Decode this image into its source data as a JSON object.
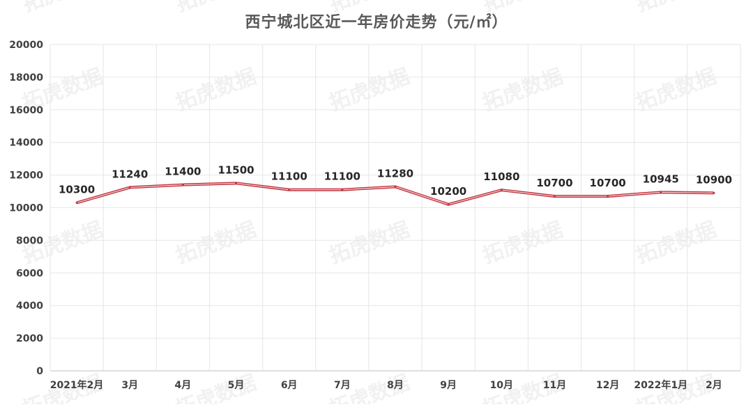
{
  "chart_data": {
    "type": "line",
    "title": "西宁城北区近一年房价走势（元/㎡）",
    "xlabel": "",
    "ylabel": "",
    "categories": [
      "2021年2月",
      "3月",
      "4月",
      "5月",
      "6月",
      "7月",
      "8月",
      "9月",
      "10月",
      "11月",
      "12月",
      "2022年1月",
      "2月"
    ],
    "series": [
      {
        "values": [
          10300,
          11240,
          11400,
          11500,
          11100,
          11100,
          11280,
          10200,
          11080,
          10700,
          10700,
          10945,
          10900
        ],
        "color": "#c0353f"
      }
    ],
    "ylim": [
      0,
      20000
    ],
    "yticks": [
      0,
      2000,
      4000,
      6000,
      8000,
      10000,
      12000,
      14000,
      16000,
      18000,
      20000
    ],
    "grid": true,
    "legend": "none",
    "data_labels": true
  },
  "watermark": "拓虎数据"
}
